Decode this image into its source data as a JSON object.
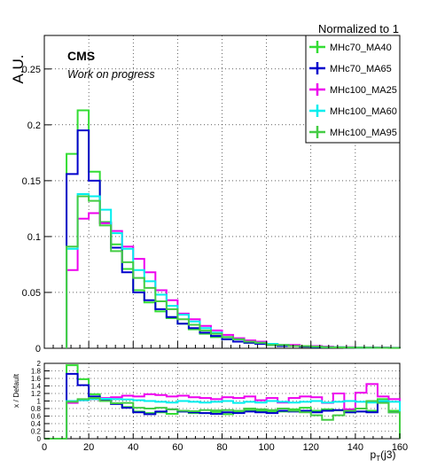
{
  "header": {
    "normalization_label": "Normalized to 1"
  },
  "annotations": {
    "experiment": "CMS",
    "status": "Work on progress"
  },
  "colors": {
    "MHc70_MA40": "#33dd33",
    "MHc70_MA65": "#0000cc",
    "MHc100_MA25": "#ee00ee",
    "MHc100_MA60": "#00eeee",
    "MHc100_MA95": "#44cc44"
  },
  "chart_data": [
    {
      "type": "line",
      "ylabel": "A.U.",
      "xlim": [
        0,
        160
      ],
      "ylim": [
        0,
        0.28
      ],
      "grid": true,
      "legend_position": "top-right",
      "x_ticks": [
        0,
        20,
        40,
        60,
        80,
        100,
        120,
        140,
        160
      ],
      "y_ticks": [
        0,
        0.05,
        0.1,
        0.15,
        0.2,
        0.25
      ],
      "y_tick_labels": [
        "0",
        "0.05",
        "0.1",
        "0.15",
        "0.2",
        "0.25"
      ],
      "bin_edges": [
        10,
        15,
        20,
        25,
        30,
        35,
        40,
        45,
        50,
        55,
        60,
        65,
        70,
        75,
        80,
        85,
        90,
        95,
        100,
        105,
        110,
        115,
        120,
        125,
        130,
        135,
        140,
        145,
        150,
        155,
        160
      ],
      "series": [
        {
          "name": "MHc70_MA40",
          "values": [
            0.174,
            0.213,
            0.158,
            0.113,
            0.093,
            0.071,
            0.052,
            0.041,
            0.033,
            0.027,
            0.022,
            0.017,
            0.013,
            0.01,
            0.008,
            0.006,
            0.005,
            0.004,
            0.003,
            0.002,
            0.002,
            0.0015,
            0.001,
            0.001,
            0.0008,
            0.0007,
            0.0006,
            0.0005,
            0.0005,
            0.0004
          ]
        },
        {
          "name": "MHc70_MA65",
          "values": [
            0.156,
            0.195,
            0.15,
            0.112,
            0.09,
            0.068,
            0.05,
            0.043,
            0.035,
            0.028,
            0.022,
            0.018,
            0.014,
            0.011,
            0.008,
            0.006,
            0.005,
            0.004,
            0.003,
            0.002,
            0.002,
            0.0015,
            0.001,
            0.001,
            0.0008,
            0.0007,
            0.0006,
            0.0005,
            0.0005,
            0.0004
          ]
        },
        {
          "name": "MHc100_MA25",
          "values": [
            0.07,
            0.116,
            0.121,
            0.112,
            0.105,
            0.091,
            0.08,
            0.068,
            0.052,
            0.043,
            0.031,
            0.026,
            0.02,
            0.016,
            0.012,
            0.009,
            0.007,
            0.006,
            0.004,
            0.003,
            0.003,
            0.002,
            0.002,
            0.0015,
            0.001,
            0.001,
            0.0008,
            0.0007,
            0.0006,
            0.0005
          ]
        },
        {
          "name": "MHc100_MA60",
          "values": [
            0.089,
            0.138,
            0.136,
            0.124,
            0.103,
            0.089,
            0.07,
            0.06,
            0.048,
            0.038,
            0.03,
            0.024,
            0.018,
            0.014,
            0.01,
            0.008,
            0.006,
            0.005,
            0.004,
            0.003,
            0.002,
            0.002,
            0.0015,
            0.001,
            0.001,
            0.0008,
            0.0007,
            0.0006,
            0.0005,
            0.0004
          ]
        },
        {
          "name": "MHc100_MA95",
          "values": [
            0.091,
            0.136,
            0.132,
            0.11,
            0.087,
            0.077,
            0.063,
            0.054,
            0.042,
            0.035,
            0.026,
            0.021,
            0.016,
            0.013,
            0.01,
            0.008,
            0.006,
            0.005,
            0.003,
            0.003,
            0.002,
            0.002,
            0.0015,
            0.001,
            0.0008,
            0.0007,
            0.0006,
            0.0005,
            0.0004,
            0.0003
          ]
        }
      ]
    },
    {
      "type": "line",
      "xlabel": "p_T(j3)",
      "ylabel": "x / Default",
      "xlim": [
        0,
        160
      ],
      "ylim": [
        0,
        2
      ],
      "grid": true,
      "x_ticks": [
        0,
        20,
        40,
        60,
        80,
        100,
        120,
        140,
        160
      ],
      "y_ticks": [
        0,
        0.2,
        0.4,
        0.6,
        0.8,
        1,
        1.2,
        1.4,
        1.6,
        1.8,
        2
      ],
      "y_tick_labels": [
        "0",
        "0.2",
        "0.4",
        "0.6",
        "0.8",
        "1",
        "1.2",
        "1.4",
        "1.6",
        "1.8",
        "2"
      ],
      "bin_edges": [
        0,
        5,
        10,
        15,
        20,
        25,
        30,
        35,
        40,
        45,
        50,
        55,
        60,
        65,
        70,
        75,
        80,
        85,
        90,
        95,
        100,
        105,
        110,
        115,
        120,
        125,
        130,
        135,
        140,
        145,
        150,
        155,
        160
      ],
      "series": [
        {
          "name": "MHc70_MA40",
          "values": [
            0,
            0,
            1.95,
            1.58,
            1.18,
            1.02,
            0.93,
            0.84,
            0.72,
            0.68,
            0.7,
            0.66,
            0.72,
            0.68,
            0.68,
            0.71,
            0.65,
            0.7,
            0.75,
            0.74,
            0.72,
            0.72,
            0.78,
            0.82,
            0.74,
            0.78,
            0.75,
            0.7,
            0.72,
            0.74,
            1.05,
            0.74
          ]
        },
        {
          "name": "MHc70_MA65",
          "values": [
            0,
            0,
            1.72,
            1.42,
            1.12,
            1.02,
            0.92,
            0.82,
            0.7,
            0.65,
            0.72,
            0.78,
            0.72,
            0.7,
            0.68,
            0.66,
            0.7,
            0.68,
            0.72,
            0.7,
            0.68,
            0.74,
            0.72,
            0.74,
            0.7,
            0.74,
            0.76,
            0.7,
            0.72,
            0.7,
            0.98,
            0.7
          ]
        },
        {
          "name": "MHc100_MA25",
          "values": [
            0,
            0,
            0.95,
            1.02,
            1.05,
            1.08,
            1.1,
            1.14,
            1.12,
            1.18,
            1.16,
            1.12,
            1.14,
            1.1,
            1.08,
            1.05,
            1.1,
            1.08,
            1.12,
            1.02,
            1.08,
            0.96,
            1.08,
            1.12,
            1.1,
            0.95,
            1.2,
            0.78,
            1.22,
            1.45,
            1.12,
            1.05
          ]
        },
        {
          "name": "MHc100_MA60",
          "values": [
            0,
            0,
            1.0,
            1.02,
            1.05,
            1.06,
            1.05,
            1.04,
            1.02,
            1.0,
            0.98,
            0.96,
            1.0,
            0.98,
            0.96,
            0.98,
            1.0,
            0.95,
            0.98,
            0.96,
            1.0,
            0.98,
            0.96,
            0.98,
            1.0,
            0.96,
            0.98,
            1.0,
            0.98,
            0.96,
            1.0,
            0.98
          ]
        },
        {
          "name": "MHc100_MA95",
          "values": [
            0,
            0,
            0.98,
            1.05,
            1.08,
            1.0,
            0.94,
            0.95,
            0.82,
            0.8,
            0.82,
            0.78,
            0.74,
            0.73,
            0.76,
            0.75,
            0.76,
            0.74,
            0.8,
            0.78,
            0.76,
            0.8,
            0.74,
            0.7,
            0.62,
            0.5,
            0.62,
            0.74,
            0.8,
            1.0,
            0.95,
            0.7
          ]
        }
      ]
    }
  ]
}
